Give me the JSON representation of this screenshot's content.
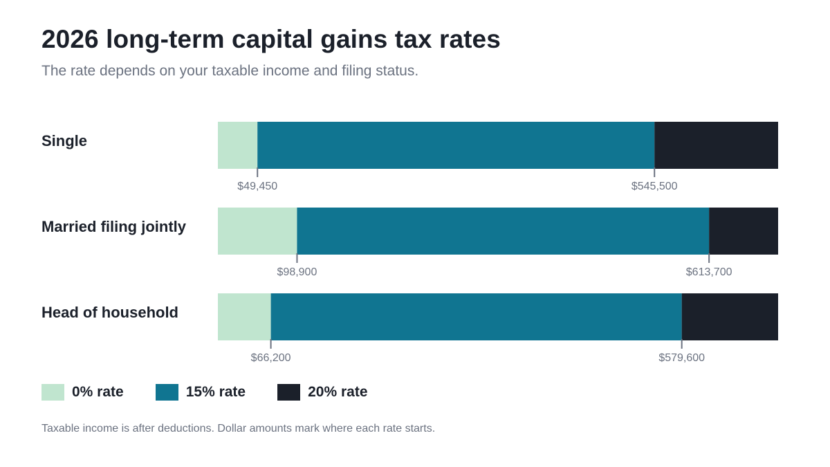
{
  "chart_data": {
    "type": "bar",
    "orientation": "horizontal",
    "stacked": true,
    "title": "2026 long-term capital gains tax rates",
    "subtitle": "The rate depends on your taxable income and filing status.",
    "categories": [
      "Single",
      "Married filing jointly",
      "Head of household"
    ],
    "series": [
      {
        "name": "0% rate",
        "color": "#c0e5cf"
      },
      {
        "name": "15% rate",
        "color": "#107591"
      },
      {
        "name": "20% rate",
        "color": "#1b202a"
      }
    ],
    "thresholds": [
      {
        "category": "Single",
        "values": [
          49450,
          545500
        ],
        "labels": [
          "$49,450",
          "$545,500"
        ]
      },
      {
        "category": "Married filing jointly",
        "values": [
          98900,
          613700
        ],
        "labels": [
          "$98,900",
          "$613,700"
        ]
      },
      {
        "category": "Head of household",
        "values": [
          66200,
          579600
        ],
        "labels": [
          "$66,200",
          "$579,600"
        ]
      }
    ],
    "xlim": [
      0,
      700000
    ],
    "grid": false,
    "legend_position": "bottom-left",
    "footnote": "Taxable income is after deductions. Dollar amounts mark where each rate starts."
  },
  "colors": {
    "tick_line": "#6b7280",
    "text_primary": "#1b202a",
    "text_secondary": "#6b7280"
  }
}
